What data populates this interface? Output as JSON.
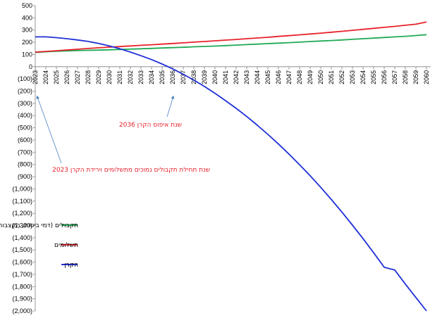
{
  "chart_data": {
    "type": "line",
    "title": "",
    "xlabel": "",
    "ylabel": "",
    "ylim": [
      -2000,
      500
    ],
    "y_ticks": [
      "500",
      "400",
      "300",
      "200",
      "100",
      "0",
      "(100)",
      "(200)",
      "(300)",
      "(400)",
      "(500)",
      "(600)",
      "(700)",
      "(800)",
      "(900)",
      "(1,000)",
      "(1,100)",
      "(1,200)",
      "(1,300)",
      "(1,400)",
      "(1,500)",
      "(1,600)",
      "(1,700)",
      "(1,800)",
      "(1,900)",
      "(2,000)"
    ],
    "grid": false,
    "legend_position": "left-bottom",
    "x": [
      2023,
      2024,
      2025,
      2026,
      2027,
      2028,
      2029,
      2030,
      2031,
      2032,
      2033,
      2034,
      2035,
      2036,
      2037,
      2038,
      2039,
      2040,
      2041,
      2042,
      2043,
      2044,
      2045,
      2046,
      2047,
      2048,
      2049,
      2050,
      2051,
      2052,
      2053,
      2054,
      2055,
      2056,
      2057,
      2058,
      2059,
      2060
    ],
    "series": [
      {
        "name": "תקבולים (דמי ביטוח, הקצבות אוצר המדינה וריבית על הקרן)",
        "color": "#1faa55",
        "values": [
          117,
          122,
          126,
          129,
          132,
          134,
          136,
          138,
          141,
          144,
          147,
          150,
          153,
          156,
          159,
          163,
          166,
          169,
          173,
          177,
          181,
          185,
          189,
          193,
          197,
          201,
          206,
          210,
          214,
          219,
          224,
          229,
          234,
          239,
          244,
          249,
          255,
          262
        ]
      },
      {
        "name": "תשלומים",
        "color": "#e8212b",
        "values": [
          120,
          125,
          131,
          137,
          143,
          149,
          155,
          160,
          165,
          170,
          175,
          180,
          185,
          190,
          195,
          201,
          206,
          212,
          218,
          223,
          229,
          235,
          241,
          248,
          254,
          261,
          268,
          275,
          282,
          290,
          298,
          306,
          314,
          322,
          330,
          339,
          348,
          366
        ]
      },
      {
        "name": "הקרן",
        "color": "#1f2fd6",
        "values": [
          244,
          244,
          238,
          229,
          219,
          207,
          190,
          170,
          147,
          120,
          90,
          58,
          22,
          -18,
          -62,
          -110,
          -162,
          -218,
          -278,
          -341,
          -408,
          -479,
          -554,
          -633,
          -716,
          -803,
          -893,
          -988,
          -1087,
          -1190,
          -1297,
          -1408,
          -1523,
          -1642,
          -1665,
          -1780,
          -1890,
          -2000
        ]
      }
    ],
    "annotations": [
      {
        "text": "2036 שנת איפוס הקרן",
        "x": 2036
      },
      {
        "text": "2023 שנת תחילת תקבולים נמוכים מתשלומים וירידת הקרן",
        "x": 2023
      }
    ]
  }
}
